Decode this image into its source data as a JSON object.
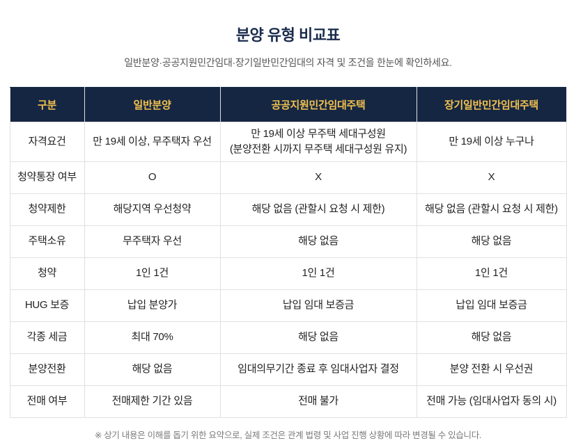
{
  "page": {
    "title": "분양 유형 비교표",
    "subtitle": "일반분양·공공지원민간임대·장기일반민간임대의 자격 및 조건을 한눈에 확인하세요.",
    "footnote": "※ 상기 내용은 이해를 돕기 위한 요약으로, 실제 조건은 관계 법령 및 사업 진행 상황에 따라 변경될 수 있습니다."
  },
  "colors": {
    "title_text": "#1a2b4c",
    "subtitle_text": "#555555",
    "header_bg": "#152642",
    "header_text": "#f2c14e",
    "body_text": "#222222",
    "border": "#e0e0e0",
    "footnote_text": "#7a7a7a"
  },
  "table": {
    "headers": [
      "구분",
      "일반분양",
      "공공지원민간임대주택",
      "장기일반민간임대주택"
    ],
    "rows": [
      {
        "label": "자격요건",
        "cells": [
          "만 19세 이상, 무주택자 우선",
          "만 19세 이상 무주택 세대구성원\n(분양전환 시까지 무주택 세대구성원 유지)",
          "만 19세 이상 누구나"
        ]
      },
      {
        "label": "청약통장 여부",
        "cells": [
          "O",
          "X",
          "X"
        ]
      },
      {
        "label": "청약제한",
        "cells": [
          "해당지역 우선청약",
          "해당 없음 (관할시 요청 시 제한)",
          "해당 없음 (관할시 요청 시 제한)"
        ]
      },
      {
        "label": "주택소유",
        "cells": [
          "무주택자 우선",
          "해당 없음",
          "해당 없음"
        ]
      },
      {
        "label": "청약",
        "cells": [
          "1인 1건",
          "1인 1건",
          "1인 1건"
        ]
      },
      {
        "label": "HUG 보증",
        "cells": [
          "납입 분양가",
          "납입 임대 보증금",
          "납입 임대 보증금"
        ]
      },
      {
        "label": "각종 세금",
        "cells": [
          "최대 70%",
          "해당 없음",
          "해당 없음"
        ]
      },
      {
        "label": "분양전환",
        "cells": [
          "해당 없음",
          "임대의무기간 종료 후 임대사업자 결정",
          "분양 전환 시 우선권"
        ]
      },
      {
        "label": "전매 여부",
        "cells": [
          "전매제한 기간 있음",
          "전매 불가",
          "전매 가능 (임대사업자 동의 시)"
        ]
      }
    ]
  }
}
